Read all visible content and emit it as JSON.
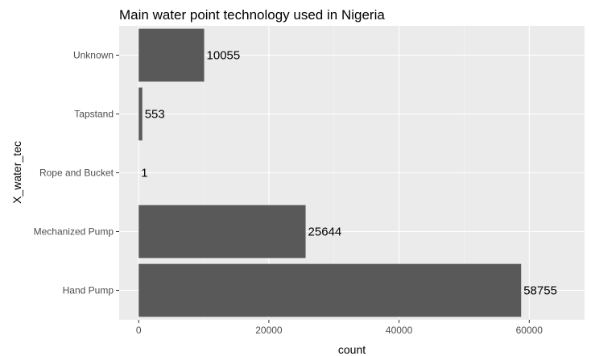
{
  "chart_data": {
    "type": "bar",
    "orientation": "horizontal",
    "title": "Main water point technology used in Nigeria",
    "xlabel": "count",
    "ylabel": "X_water_tec",
    "categories": [
      "Unknown",
      "Tapstand",
      "Rope and Bucket",
      "Mechanized Pump",
      "Hand Pump"
    ],
    "values": [
      10055,
      553,
      1,
      25644,
      58755
    ],
    "data_labels": [
      "10055",
      "553",
      "1",
      "25644",
      "58755"
    ],
    "x_ticks": [
      0,
      20000,
      40000,
      60000
    ],
    "x_tick_labels": [
      "0",
      "20000",
      "40000",
      "60000"
    ],
    "xlim": [
      -3000,
      68500
    ],
    "grid": true,
    "legend": "none",
    "colors": {
      "panel_background": "#ebebeb",
      "grid_major": "#ffffff",
      "grid_minor": "#f5f5f5",
      "bar_fill": "#595959",
      "tick_text": "#4d4d4d"
    }
  }
}
